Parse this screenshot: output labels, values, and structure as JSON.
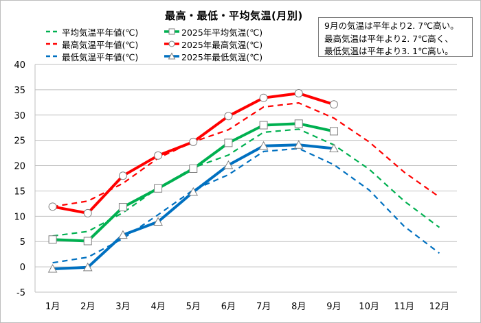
{
  "chart_data": {
    "type": "line",
    "title": "最高・最低・平均気温(月別)",
    "xlabel": "",
    "ylabel": "",
    "ylim": [
      -5,
      40
    ],
    "yticks": [
      40,
      35,
      30,
      25,
      20,
      15,
      10,
      5,
      0,
      -5
    ],
    "grid": true,
    "legend_position": "top-left",
    "categories": [
      "1月",
      "2月",
      "3月",
      "4月",
      "5月",
      "6月",
      "7月",
      "8月",
      "9月",
      "10月",
      "11月",
      "12月"
    ],
    "series": [
      {
        "name": "平均気温平年値(℃)",
        "color": "#00b050",
        "style": "dashed",
        "marker": "none",
        "values": [
          6.1,
          7.0,
          10.7,
          15.6,
          19.6,
          22.1,
          26.6,
          27.2,
          24.1,
          19.3,
          13.0,
          7.8
        ]
      },
      {
        "name": "最高気温平年値(℃)",
        "color": "#ff0000",
        "style": "dashed",
        "marker": "none",
        "values": [
          11.9,
          13.0,
          16.5,
          21.5,
          24.7,
          27.1,
          31.6,
          32.4,
          29.4,
          24.7,
          18.7,
          13.8
        ]
      },
      {
        "name": "最低気温平年値(℃)",
        "color": "#0070c0",
        "style": "dashed",
        "marker": "none",
        "values": [
          0.8,
          1.9,
          5.6,
          10.3,
          15.2,
          18.2,
          22.8,
          23.4,
          20.2,
          15.2,
          8.0,
          2.7
        ]
      },
      {
        "name": "2025年平均気温(℃)",
        "color": "#00b050",
        "style": "solid",
        "marker": "square",
        "values": [
          5.4,
          5.1,
          11.8,
          15.5,
          19.4,
          24.5,
          28.0,
          28.3,
          26.8,
          null,
          null,
          null
        ]
      },
      {
        "name": "2025年最高気温(℃)",
        "color": "#ff0000",
        "style": "solid",
        "marker": "circle",
        "values": [
          11.9,
          10.6,
          18.0,
          22.0,
          24.7,
          29.8,
          33.4,
          34.3,
          32.1,
          null,
          null,
          null
        ]
      },
      {
        "name": "2025年最低気温(℃)",
        "color": "#0070c0",
        "style": "solid",
        "marker": "triangle",
        "values": [
          -0.4,
          -0.1,
          6.3,
          8.9,
          14.8,
          20.1,
          23.9,
          24.1,
          23.4,
          null,
          null,
          null
        ]
      }
    ],
    "annotation": [
      "9月の気温は平年より2. 7℃高い。",
      "最高気温は平年より2. 7℃高く、",
      "最低気温は平年より3. 1℃高い。"
    ]
  },
  "colors": {
    "grid": "#bfbfbf",
    "axis": "#bfbfbf",
    "marker_fill": "#ffffff",
    "marker_stroke": "#7f7f7f"
  }
}
